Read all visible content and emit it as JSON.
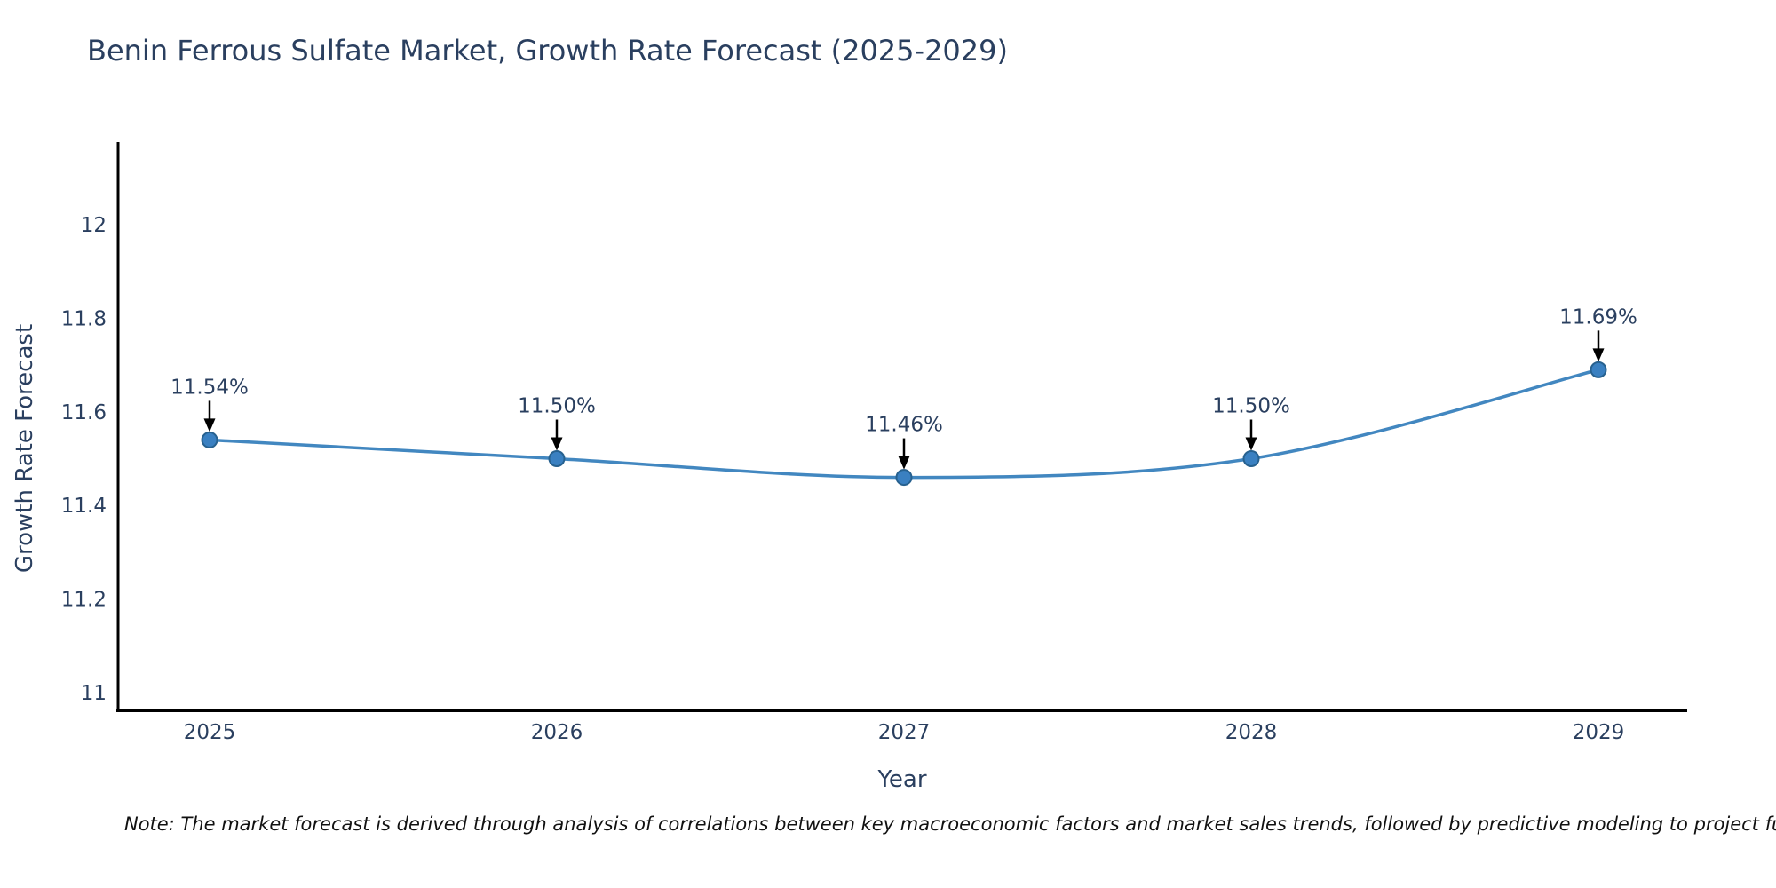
{
  "chart": {
    "title": "Benin Ferrous Sulfate Market, Growth Rate Forecast (2025-2029)",
    "ylabel": "Growth Rate Forecast",
    "xlabel": "Year",
    "note": "Note: The market forecast is derived through analysis of correlations between key macroeconomic factors and market sales trends, followed by predictive modeling to project future sal"
  },
  "chart_data": {
    "type": "line",
    "line_shape": "spline",
    "grid": false,
    "legend_position": "none",
    "title": "Benin Ferrous Sulfate Market, Growth Rate Forecast (2025-2029)",
    "xlabel": "Year",
    "ylabel": "Growth Rate Forecast",
    "x": [
      2025,
      2026,
      2027,
      2028,
      2029
    ],
    "xtick_labels": [
      "2025",
      "2026",
      "2027",
      "2028",
      "2029"
    ],
    "values": [
      11.54,
      11.5,
      11.46,
      11.5,
      11.69
    ],
    "point_labels": [
      "11.54%",
      "11.50%",
      "11.46%",
      "11.50%",
      "11.69%"
    ],
    "ylim": [
      10.88,
      12.18
    ],
    "yticks": [
      {
        "value": 11,
        "label": "11"
      },
      {
        "value": 11.2,
        "label": "11.2"
      },
      {
        "value": 11.4,
        "label": "11.4"
      },
      {
        "value": 11.6,
        "label": "11.6"
      },
      {
        "value": 11.8,
        "label": "11.8"
      },
      {
        "value": 12,
        "label": "12"
      }
    ],
    "colors": {
      "line": "#4287c0",
      "marker_fill": "#3a80c1",
      "marker_edge": "#27618f",
      "text": "#2a3f5f",
      "axis": "#000000",
      "annotation_arrow": "#000000",
      "background": "#ffffff"
    }
  }
}
